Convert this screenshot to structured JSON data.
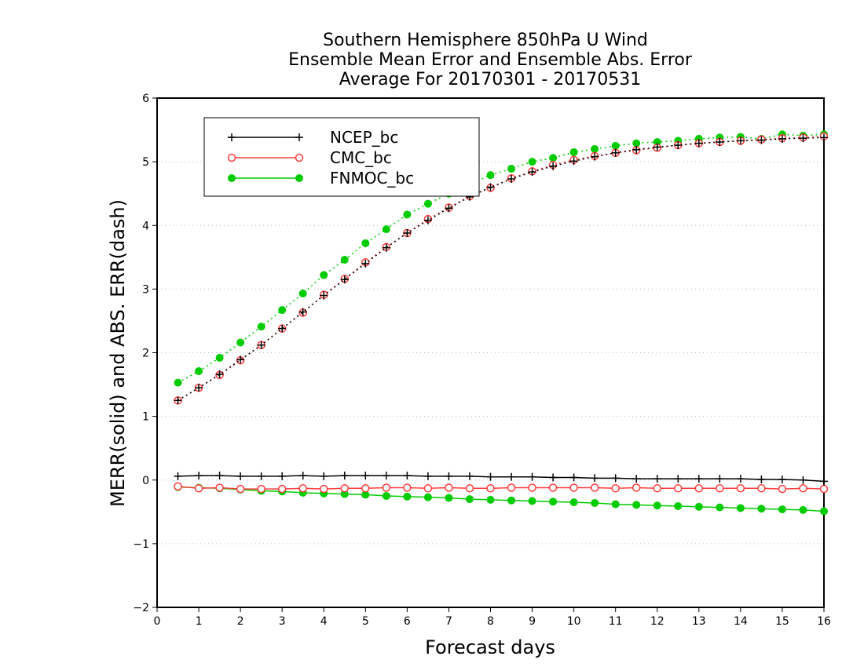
{
  "chart_data": {
    "type": "line",
    "title_lines": [
      "Southern Hemisphere 850hPa U Wind",
      "Ensemble Mean Error and Ensemble Abs. Error",
      "Average For 20170301 - 20170531"
    ],
    "xlabel": "Forecast days",
    "ylabel": "MERR(solid) and ABS. ERR(dash)",
    "xlim": [
      0,
      16
    ],
    "ylim": [
      -2,
      6
    ],
    "xticks": [
      0,
      1,
      2,
      3,
      4,
      5,
      6,
      7,
      8,
      9,
      10,
      11,
      12,
      13,
      14,
      15,
      16
    ],
    "yticks": [
      -2,
      -1,
      0,
      1,
      2,
      3,
      4,
      5,
      6
    ],
    "grid": "horizontal dotted",
    "legend_position": "top-left",
    "x": [
      0.5,
      1,
      1.5,
      2,
      2.5,
      3,
      3.5,
      4,
      4.5,
      5,
      5.5,
      6,
      6.5,
      7,
      7.5,
      8,
      8.5,
      9,
      9.5,
      10,
      10.5,
      11,
      11.5,
      12,
      12.5,
      13,
      13.5,
      14,
      14.5,
      15,
      15.5,
      16
    ],
    "series": [
      {
        "name": "NCEP_bc",
        "color": "#000000",
        "marker": "plus",
        "merr": [
          0.06,
          0.07,
          0.07,
          0.06,
          0.06,
          0.06,
          0.07,
          0.06,
          0.07,
          0.07,
          0.07,
          0.07,
          0.06,
          0.06,
          0.06,
          0.05,
          0.05,
          0.05,
          0.04,
          0.04,
          0.03,
          0.03,
          0.02,
          0.02,
          0.02,
          0.02,
          0.02,
          0.02,
          0.01,
          0.01,
          0.0,
          -0.02
        ],
        "abs_err": [
          1.25,
          1.45,
          1.66,
          1.89,
          2.12,
          2.38,
          2.64,
          2.9,
          3.15,
          3.4,
          3.65,
          3.88,
          4.08,
          4.27,
          4.45,
          4.6,
          4.73,
          4.84,
          4.93,
          5.01,
          5.08,
          5.14,
          5.19,
          5.23,
          5.26,
          5.29,
          5.31,
          5.33,
          5.34,
          5.36,
          5.37,
          5.38
        ]
      },
      {
        "name": "CMC_bc",
        "color": "#ff3b3b",
        "marker": "open-circle",
        "merr": [
          -0.1,
          -0.13,
          -0.12,
          -0.14,
          -0.14,
          -0.14,
          -0.13,
          -0.14,
          -0.13,
          -0.13,
          -0.12,
          -0.12,
          -0.13,
          -0.12,
          -0.13,
          -0.13,
          -0.12,
          -0.12,
          -0.12,
          -0.12,
          -0.12,
          -0.13,
          -0.12,
          -0.13,
          -0.13,
          -0.13,
          -0.13,
          -0.13,
          -0.13,
          -0.14,
          -0.13,
          -0.14
        ],
        "abs_err": [
          1.25,
          1.45,
          1.65,
          1.88,
          2.12,
          2.38,
          2.63,
          2.91,
          3.16,
          3.42,
          3.66,
          3.88,
          4.1,
          4.28,
          4.46,
          4.59,
          4.74,
          4.85,
          4.95,
          5.03,
          5.09,
          5.14,
          5.18,
          5.22,
          5.26,
          5.29,
          5.31,
          5.33,
          5.35,
          5.37,
          5.38,
          5.4
        ]
      },
      {
        "name": "FNMOC_bc",
        "color": "#00cc00",
        "marker": "filled-circle",
        "merr": [
          -0.11,
          -0.12,
          -0.13,
          -0.15,
          -0.17,
          -0.18,
          -0.2,
          -0.21,
          -0.22,
          -0.23,
          -0.25,
          -0.26,
          -0.27,
          -0.28,
          -0.3,
          -0.31,
          -0.32,
          -0.33,
          -0.34,
          -0.35,
          -0.36,
          -0.38,
          -0.39,
          -0.4,
          -0.41,
          -0.42,
          -0.43,
          -0.44,
          -0.45,
          -0.46,
          -0.47,
          -0.49
        ],
        "abs_err": [
          1.53,
          1.71,
          1.92,
          2.16,
          2.41,
          2.67,
          2.93,
          3.22,
          3.46,
          3.72,
          3.94,
          4.17,
          4.34,
          4.5,
          4.65,
          4.79,
          4.89,
          5.0,
          5.06,
          5.15,
          5.2,
          5.25,
          5.29,
          5.31,
          5.33,
          5.36,
          5.38,
          5.39,
          5.36,
          5.43,
          5.41,
          5.43
        ]
      }
    ]
  }
}
